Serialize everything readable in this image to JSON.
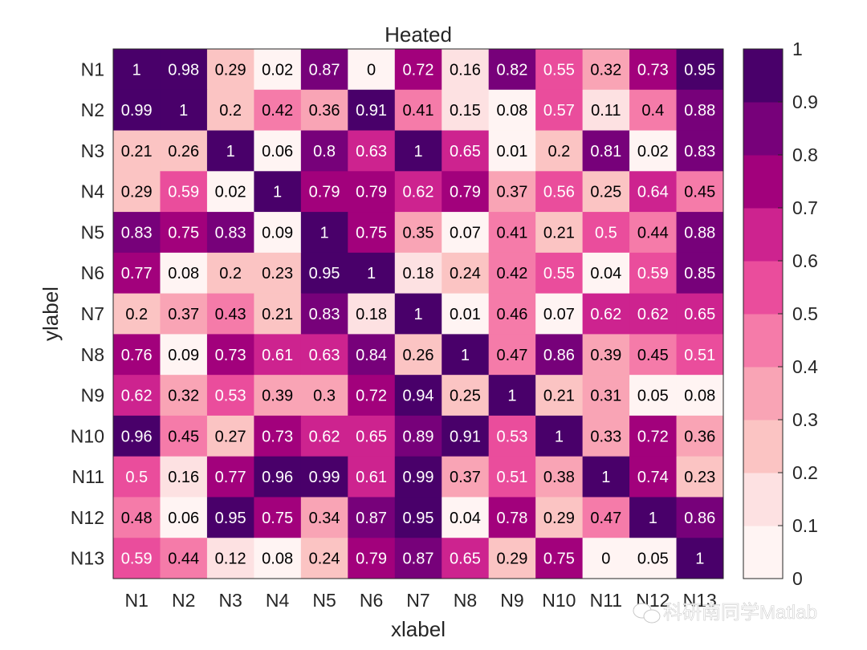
{
  "chart_data": {
    "type": "heatmap",
    "title": "Heated",
    "xlabel": "xlabel",
    "ylabel": "ylabel",
    "x_categories": [
      "N1",
      "N2",
      "N3",
      "N4",
      "N5",
      "N6",
      "N7",
      "N8",
      "N9",
      "N10",
      "N11",
      "N12",
      "N13"
    ],
    "y_categories": [
      "N1",
      "N2",
      "N3",
      "N4",
      "N5",
      "N6",
      "N7",
      "N8",
      "N9",
      "N10",
      "N11",
      "N12",
      "N13"
    ],
    "values": [
      [
        1,
        0.98,
        0.29,
        0.02,
        0.87,
        0,
        0.72,
        0.16,
        0.82,
        0.55,
        0.32,
        0.73,
        0.95
      ],
      [
        0.99,
        1,
        0.2,
        0.42,
        0.36,
        0.91,
        0.41,
        0.15,
        0.08,
        0.57,
        0.11,
        0.4,
        0.88
      ],
      [
        0.21,
        0.26,
        1,
        0.06,
        0.8,
        0.63,
        1,
        0.65,
        0.01,
        0.2,
        0.81,
        0.02,
        0.83
      ],
      [
        0.29,
        0.59,
        0.02,
        1,
        0.79,
        0.79,
        0.62,
        0.79,
        0.37,
        0.56,
        0.25,
        0.64,
        0.45
      ],
      [
        0.83,
        0.75,
        0.83,
        0.09,
        1,
        0.75,
        0.35,
        0.07,
        0.41,
        0.21,
        0.5,
        0.44,
        0.88
      ],
      [
        0.77,
        0.08,
        0.2,
        0.23,
        0.95,
        1,
        0.18,
        0.24,
        0.42,
        0.55,
        0.04,
        0.59,
        0.85
      ],
      [
        0.2,
        0.37,
        0.43,
        0.21,
        0.83,
        0.18,
        1,
        0.01,
        0.46,
        0.07,
        0.62,
        0.62,
        0.65
      ],
      [
        0.76,
        0.09,
        0.73,
        0.61,
        0.63,
        0.84,
        0.26,
        1,
        0.47,
        0.86,
        0.39,
        0.45,
        0.51
      ],
      [
        0.62,
        0.32,
        0.53,
        0.39,
        0.3,
        0.72,
        0.94,
        0.25,
        1,
        0.21,
        0.31,
        0.05,
        0.08
      ],
      [
        0.96,
        0.45,
        0.27,
        0.73,
        0.62,
        0.65,
        0.89,
        0.91,
        0.53,
        1,
        0.33,
        0.72,
        0.36
      ],
      [
        0.5,
        0.16,
        0.77,
        0.96,
        0.99,
        0.61,
        0.99,
        0.37,
        0.51,
        0.38,
        1,
        0.74,
        0.23
      ],
      [
        0.48,
        0.06,
        0.95,
        0.75,
        0.34,
        0.87,
        0.95,
        0.04,
        0.78,
        0.29,
        0.47,
        1,
        0.86
      ],
      [
        0.59,
        0.44,
        0.12,
        0.08,
        0.24,
        0.79,
        0.87,
        0.65,
        0.29,
        0.75,
        0,
        0.05,
        1
      ]
    ],
    "colorbar": {
      "range": [
        0,
        1
      ],
      "ticks": [
        0,
        0.1,
        0.2,
        0.3,
        0.4,
        0.5,
        0.6,
        0.7,
        0.8,
        0.9,
        1
      ],
      "colors": [
        "#fff4f3",
        "#fde1e2",
        "#fbc4c3",
        "#f9a4b5",
        "#f57ba9",
        "#ea4d9c",
        "#cd238f",
        "#a2017c",
        "#77017a",
        "#49006a"
      ]
    },
    "watermark": "科研南同学Matlab"
  }
}
